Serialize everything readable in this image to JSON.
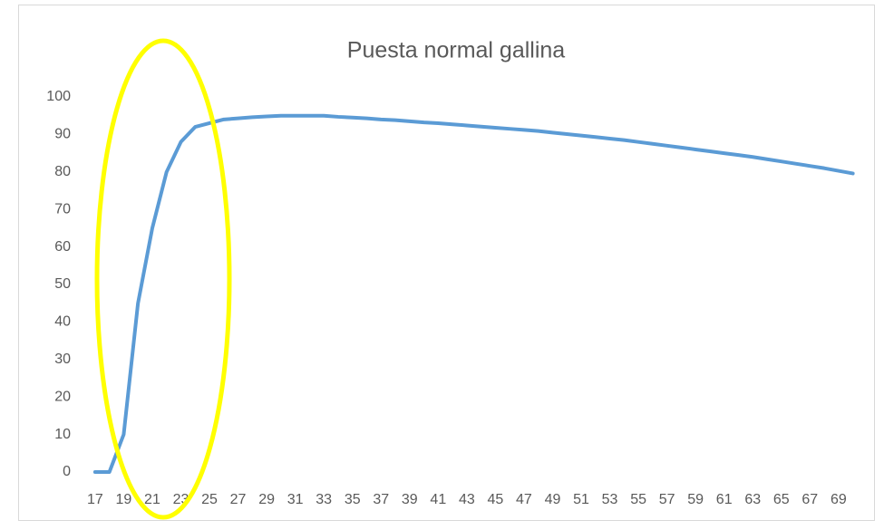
{
  "chart_data": {
    "type": "line",
    "title": "Puesta normal gallina",
    "x": [
      17,
      18,
      19,
      20,
      21,
      22,
      23,
      24,
      25,
      26,
      27,
      28,
      29,
      30,
      31,
      32,
      33,
      34,
      35,
      36,
      37,
      38,
      39,
      40,
      41,
      42,
      43,
      44,
      45,
      46,
      47,
      48,
      49,
      50,
      51,
      52,
      53,
      54,
      55,
      56,
      57,
      58,
      59,
      60,
      61,
      62,
      63,
      64,
      65,
      66,
      67,
      68,
      69,
      70
    ],
    "values": [
      0,
      0,
      10,
      45,
      65,
      80,
      88,
      92,
      93,
      94,
      94.3,
      94.6,
      94.8,
      95,
      95,
      95,
      95,
      94.7,
      94.5,
      94.3,
      94,
      93.8,
      93.5,
      93.2,
      93,
      92.7,
      92.4,
      92.1,
      91.8,
      91.5,
      91.2,
      90.9,
      90.5,
      90.1,
      89.7,
      89.3,
      88.9,
      88.5,
      88,
      87.5,
      87,
      86.5,
      86,
      85.5,
      85,
      84.5,
      84,
      83.4,
      82.8,
      82.2,
      81.6,
      81,
      80.3,
      79.6
    ],
    "color": "#5b9bd5",
    "xlim": [
      16.5,
      70.5
    ],
    "xticks": [
      17,
      19,
      21,
      23,
      25,
      27,
      29,
      31,
      33,
      35,
      37,
      39,
      41,
      43,
      45,
      47,
      49,
      51,
      53,
      55,
      57,
      59,
      61,
      63,
      65,
      67,
      69
    ],
    "ylim": [
      0,
      100
    ],
    "yticks": [
      0,
      10,
      20,
      30,
      40,
      50,
      60,
      70,
      80,
      90,
      100
    ],
    "grid": false
  }
}
